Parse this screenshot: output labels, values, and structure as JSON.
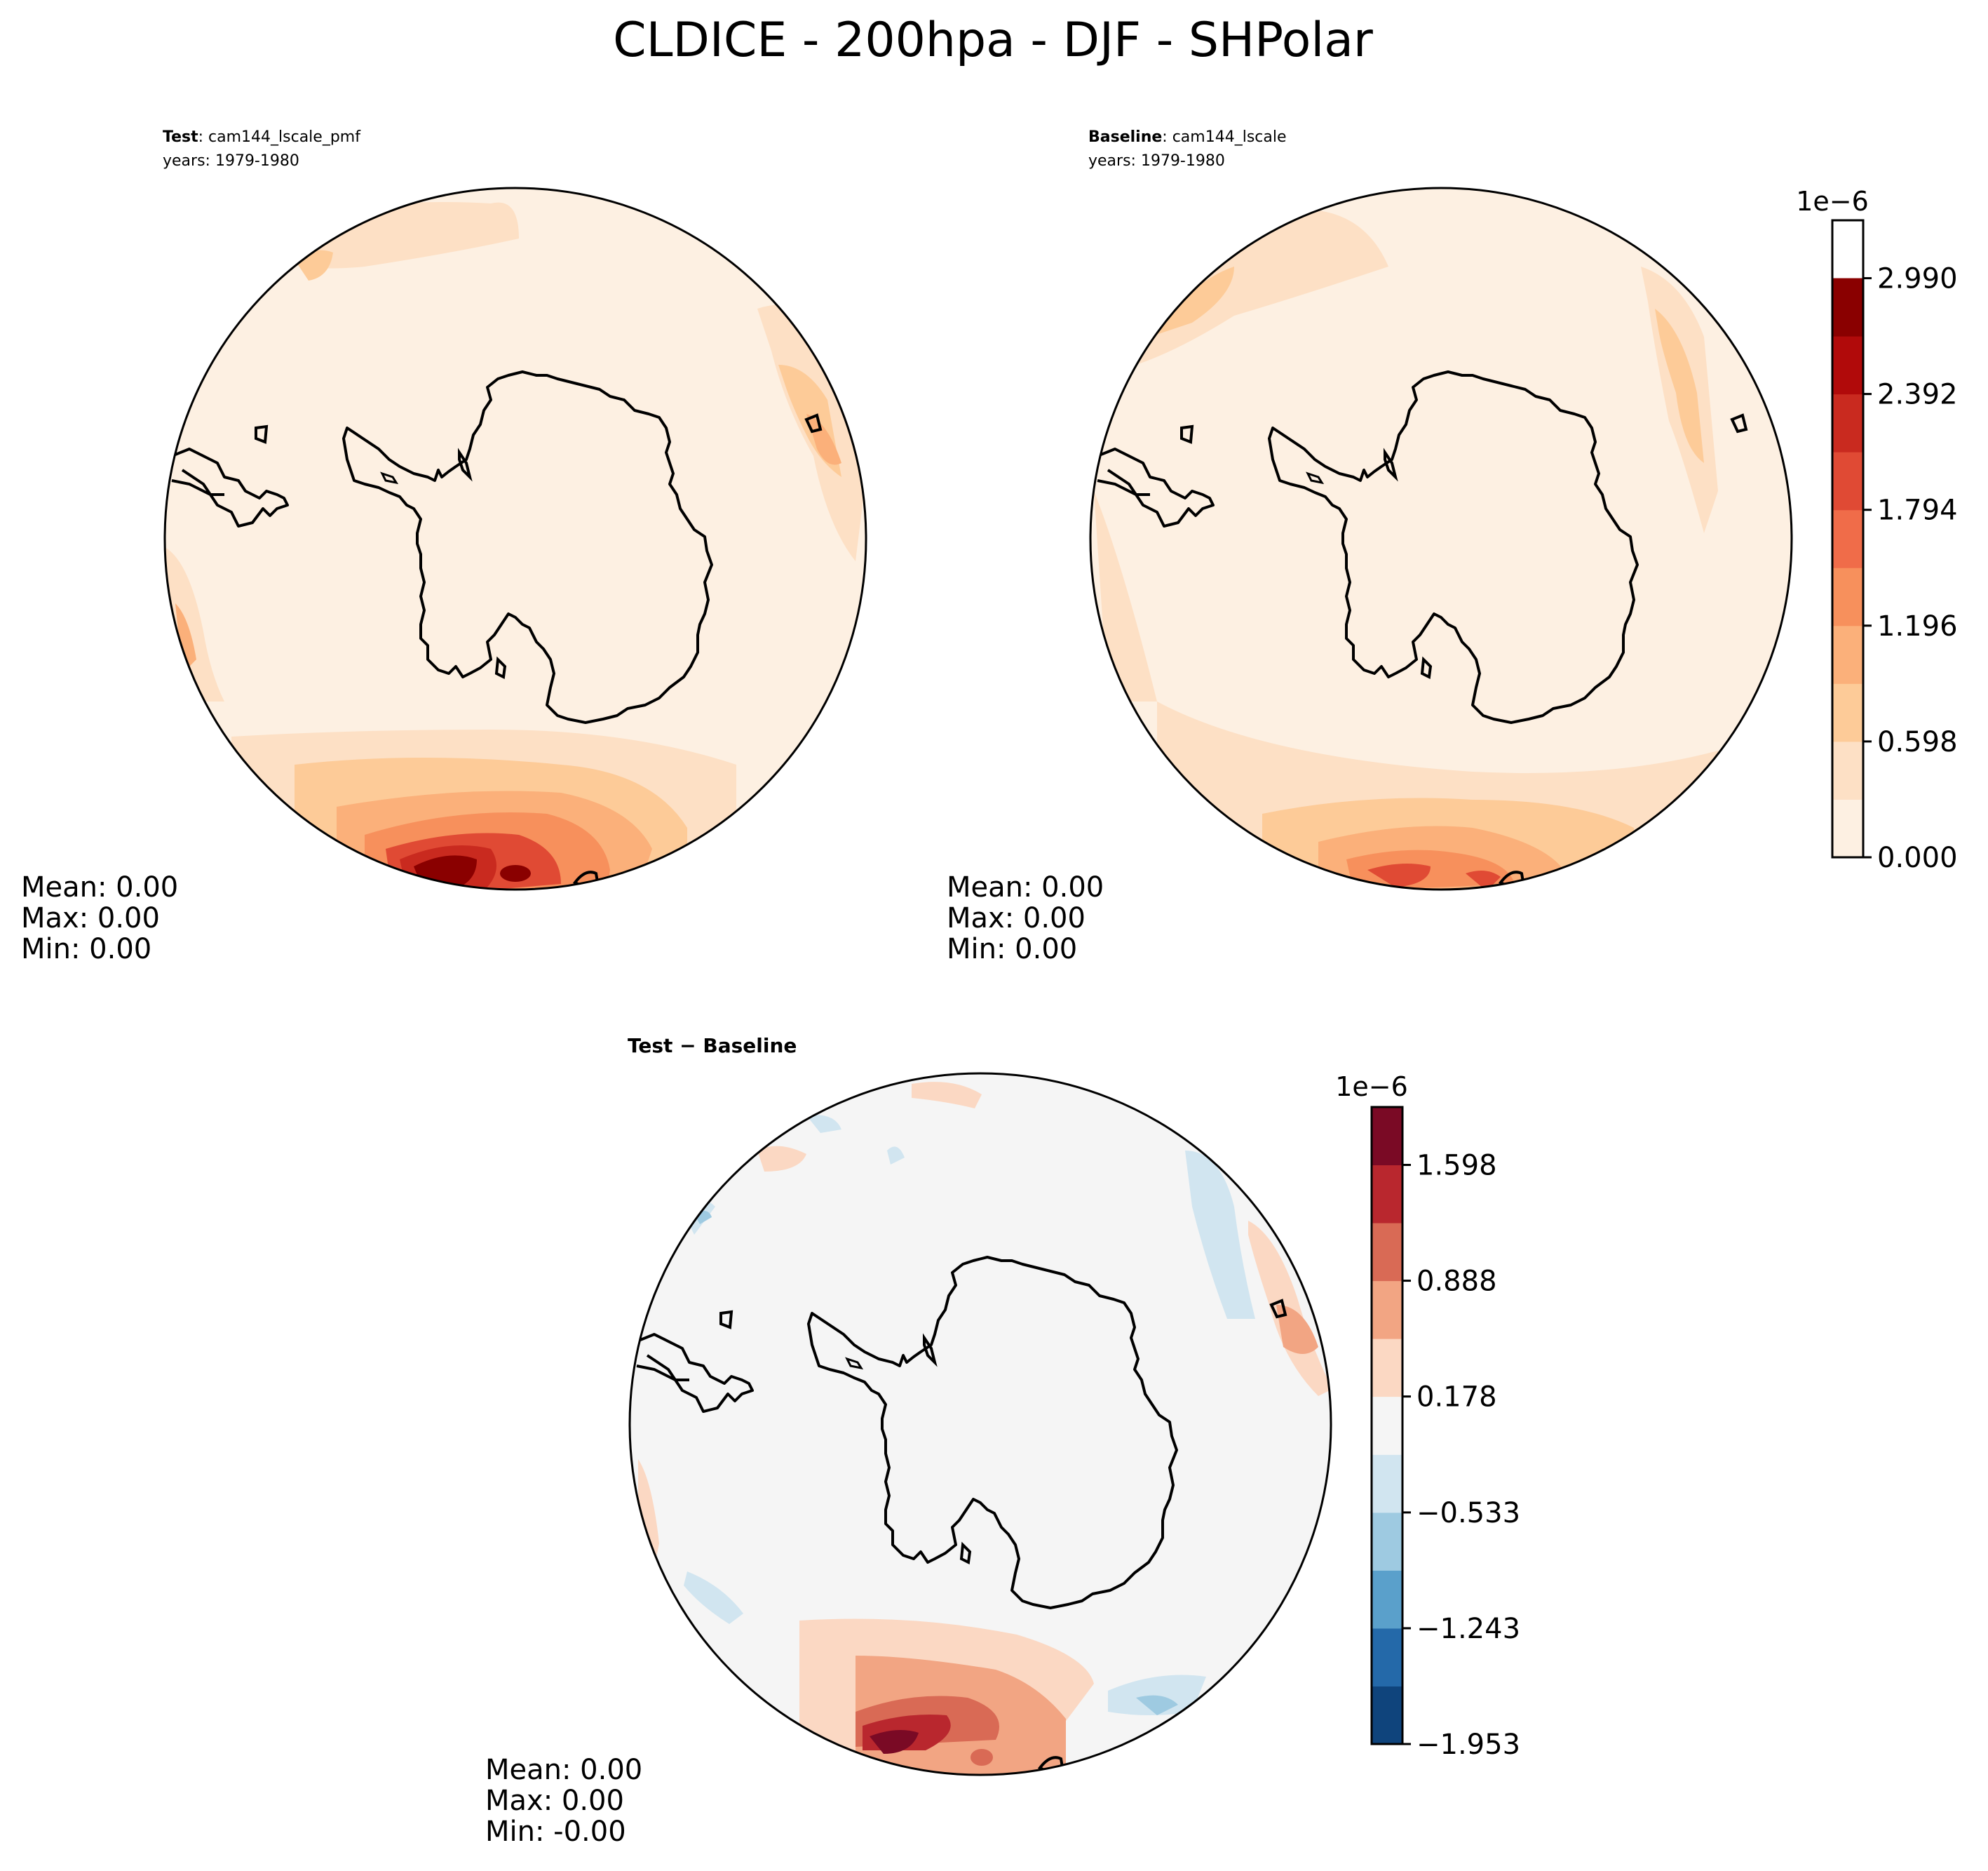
{
  "title": "CLDICE - 200hpa - DJF - SHPolar",
  "colors": {
    "seq": [
      "#fff5eb",
      "#fee6ce",
      "#fdd0a2",
      "#fdae6b",
      "#fd8d3c",
      "#f16913",
      "#e34a33",
      "#d7301f",
      "#b30000",
      "#7f0000"
    ],
    "seq_cmap": [
      "#fdf0e2",
      "#fde0c5",
      "#fdcb98",
      "#fbb07a",
      "#f7905c",
      "#f06c49",
      "#e04a34",
      "#c92a1f",
      "#b10a0a",
      "#8a0000"
    ],
    "div_cmap": [
      "#0f447c",
      "#2469a9",
      "#5aa0cb",
      "#9ecae1",
      "#d1e5f0",
      "#f5f5f5",
      "#fbd8c3",
      "#f2a583",
      "#d96a55",
      "#b9272e",
      "#7a0a25"
    ],
    "coast": "#000000"
  },
  "panels": {
    "test": {
      "label_bold": "Test",
      "label_rest": ": cam144_lscale_pmf",
      "years": "years: 1979-1980",
      "stats": {
        "mean": "Mean:  0.00",
        "max": "Max:  0.00",
        "min": "Min:  0.00"
      }
    },
    "baseline": {
      "label_bold": "Baseline",
      "label_rest": ": cam144_lscale",
      "years": "years: 1979-1980",
      "stats": {
        "mean": "Mean:  0.00",
        "max": "Max:  0.00",
        "min": "Min:  0.00"
      }
    },
    "diff": {
      "label": "Test − Baseline",
      "stats": {
        "mean": "Mean:  0.00",
        "max": "Max:  0.00",
        "min": "Min: -0.00"
      }
    }
  },
  "chart_data": [
    {
      "type": "heatmap",
      "projection": "south-polar-stereographic",
      "panel": "test",
      "variable": "CLDICE",
      "level": "200hpa",
      "season": "DJF",
      "region": "SHPolar",
      "colorbar": "shared-right-of-baseline"
    },
    {
      "type": "heatmap",
      "projection": "south-polar-stereographic",
      "panel": "baseline",
      "variable": "CLDICE",
      "level": "200hpa",
      "season": "DJF",
      "region": "SHPolar",
      "colorbar": {
        "scale_label": "1e−6",
        "tick_labels": [
          "0.000",
          "0.598",
          "1.196",
          "1.794",
          "2.392",
          "2.990"
        ],
        "ticks": [
          0.0,
          0.598,
          1.196,
          1.794,
          2.392,
          2.99
        ],
        "levels": [
          0.0,
          0.299,
          0.598,
          0.897,
          1.196,
          1.495,
          1.794,
          2.093,
          2.392,
          2.691,
          2.99,
          3.289
        ],
        "range": [
          0.0,
          3.289
        ]
      }
    },
    {
      "type": "heatmap",
      "projection": "south-polar-stereographic",
      "panel": "diff",
      "colorbar": {
        "scale_label": "1e−6",
        "tick_labels": [
          "−1.953",
          "−1.243",
          "−0.533",
          "0.178",
          "0.888",
          "1.598"
        ],
        "ticks": [
          -1.953,
          -1.243,
          -0.533,
          0.178,
          0.888,
          1.598
        ],
        "levels": [
          -1.953,
          -1.598,
          -1.243,
          -0.888,
          -0.533,
          -0.178,
          0.178,
          0.533,
          0.888,
          1.243,
          1.598,
          1.953
        ],
        "range": [
          -1.953,
          1.953
        ]
      }
    }
  ]
}
